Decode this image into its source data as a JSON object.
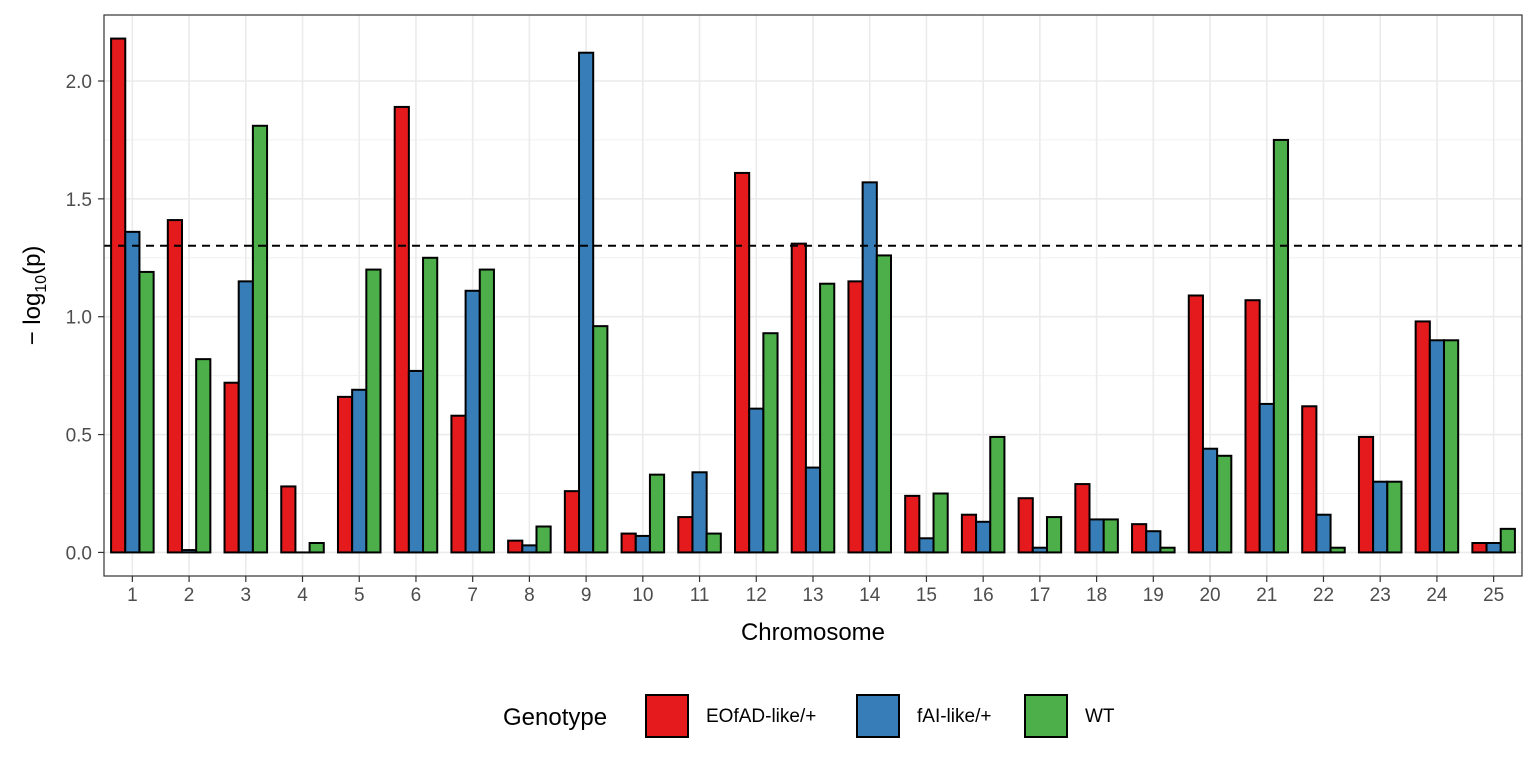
{
  "chart_data": {
    "type": "bar",
    "title": "",
    "xlabel": "Chromosome",
    "ylabel": {
      "prefix": "− log",
      "subscript": "10",
      "suffix": "(p)"
    },
    "categories": [
      "1",
      "2",
      "3",
      "4",
      "5",
      "6",
      "7",
      "8",
      "9",
      "10",
      "11",
      "12",
      "13",
      "14",
      "15",
      "16",
      "17",
      "18",
      "19",
      "20",
      "21",
      "22",
      "23",
      "24",
      "25"
    ],
    "y_ticks": [
      0.0,
      0.5,
      1.0,
      1.5,
      2.0
    ],
    "y_tick_labels": [
      "0.0",
      "0.5",
      "1.0",
      "1.5",
      "2.0"
    ],
    "ylim": [
      -0.1,
      2.28
    ],
    "threshold": 1.301,
    "grid": true,
    "legend": {
      "title": "Genotype",
      "placement": "bottom"
    },
    "series": [
      {
        "name": "EOfAD-like/+",
        "color": "#E41A1C",
        "values": [
          2.18,
          1.41,
          0.72,
          0.28,
          0.66,
          1.89,
          0.58,
          0.05,
          0.26,
          0.08,
          0.15,
          1.61,
          1.31,
          1.15,
          0.24,
          0.16,
          0.23,
          0.29,
          0.12,
          1.09,
          1.07,
          0.62,
          0.49,
          0.98,
          0.04
        ]
      },
      {
        "name": "fAI-like/+",
        "color": "#377EB8",
        "values": [
          1.36,
          0.01,
          1.15,
          0.0,
          0.69,
          0.77,
          1.11,
          0.03,
          2.12,
          0.07,
          0.34,
          0.61,
          0.36,
          1.57,
          0.06,
          0.13,
          0.02,
          0.14,
          0.09,
          0.44,
          0.63,
          0.16,
          0.3,
          0.9,
          0.04
        ]
      },
      {
        "name": "WT",
        "color": "#4DAF4A",
        "values": [
          1.19,
          0.82,
          1.81,
          0.04,
          1.2,
          1.25,
          1.2,
          0.11,
          0.96,
          0.33,
          0.08,
          0.93,
          1.14,
          1.26,
          0.25,
          0.49,
          0.15,
          0.14,
          0.02,
          0.41,
          1.75,
          0.02,
          0.3,
          0.9,
          0.1
        ]
      }
    ]
  }
}
